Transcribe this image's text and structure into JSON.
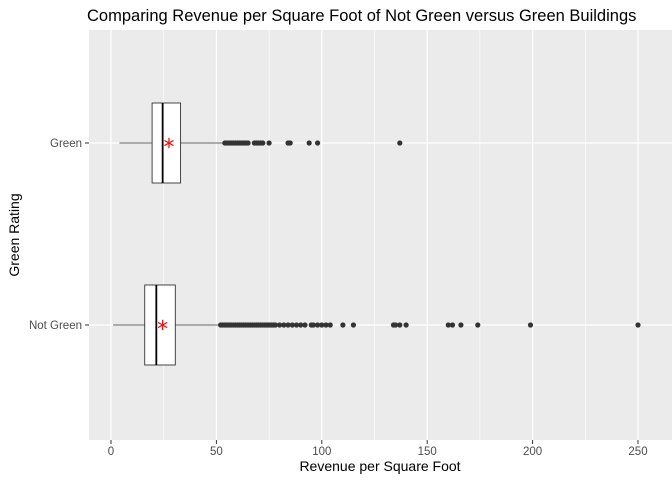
{
  "chart_data": {
    "type": "boxplot",
    "title": "Comparing Revenue per Square Foot of Not Green versus Green Buildings",
    "xlabel": "Revenue per Square Foot",
    "ylabel": "Green Rating",
    "xlim": [
      -10,
      265
    ],
    "x_ticks": [
      0,
      50,
      100,
      150,
      200,
      250
    ],
    "grid": true,
    "orientation": "horizontal",
    "categories": [
      "Green",
      "Not Green"
    ],
    "groups": [
      {
        "name": "Green",
        "whisker_low": 4,
        "q1": 19.5,
        "median": 24.5,
        "q3": 33,
        "whisker_high": 53,
        "mean": 27.5,
        "outliers": [
          54,
          55,
          56,
          57,
          58,
          59,
          60,
          61,
          62,
          63,
          64,
          65,
          68,
          69,
          70,
          71,
          72,
          75,
          84,
          85,
          94,
          98,
          137
        ]
      },
      {
        "name": "Not Green",
        "whisker_low": 1,
        "q1": 16,
        "median": 21.5,
        "q3": 30.5,
        "whisker_high": 52,
        "mean": 24.5,
        "outliers": [
          52,
          53,
          54,
          55,
          56,
          57,
          58,
          59,
          60,
          61,
          62,
          63,
          64,
          65,
          66,
          67,
          68,
          69,
          70,
          71,
          72,
          73,
          74,
          75,
          76,
          77,
          78,
          80,
          82,
          84,
          86,
          88,
          90,
          92,
          95,
          96,
          98,
          100,
          102,
          104,
          110,
          115,
          134,
          135,
          137,
          140,
          160,
          162,
          166,
          174,
          199,
          250
        ]
      }
    ],
    "colors": {
      "panel": "#ebebeb",
      "grid_major": "#ffffff",
      "outlier": "#333333",
      "mean_marker": "#e31a1c",
      "box_fill": "#ffffff",
      "box_stroke": "#333333"
    }
  }
}
